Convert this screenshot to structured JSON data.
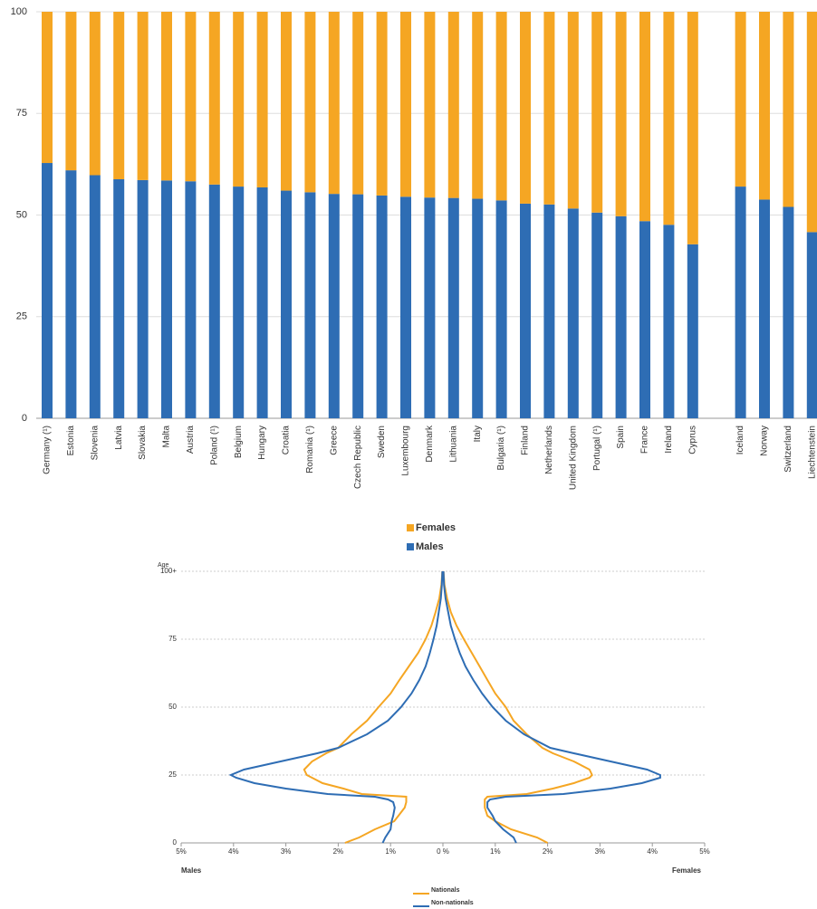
{
  "chart_data": [
    {
      "type": "bar",
      "stacked": true,
      "categories": [
        "Germany (¹)",
        "Estonia",
        "Slovenia",
        "Latvia",
        "Slovakia",
        "Malta",
        "Austria",
        "Poland (¹)",
        "Belgium",
        "Hungary",
        "Croatia",
        "Romania (¹)",
        "Greece",
        "Czech Republic",
        "Sweden",
        "Luxembourg",
        "Denmark",
        "Lithuania",
        "Italy",
        "Bulgaria (¹)",
        "Finland",
        "Netherlands",
        "United Kingdom",
        "Portugal (¹)",
        "Spain",
        "France",
        "Ireland",
        "Cyprus",
        null,
        "Iceland",
        "Norway",
        "Switzerland",
        "Liechtenstein"
      ],
      "series": [
        {
          "name": "Males",
          "color": "#2e6db4",
          "values": [
            62.8,
            61,
            59.8,
            58.8,
            58.6,
            58.5,
            58.3,
            57.5,
            57,
            56.8,
            56,
            55.6,
            55.2,
            55.1,
            54.8,
            54.5,
            54.3,
            54.2,
            54,
            53.6,
            52.8,
            52.6,
            51.6,
            50.6,
            49.7,
            48.5,
            47.6,
            42.8,
            null,
            57,
            53.8,
            52,
            45.8
          ]
        },
        {
          "name": "Females",
          "color": "#f5a623",
          "values": [
            37.2,
            39,
            40.2,
            41.2,
            41.4,
            41.5,
            41.7,
            42.5,
            43,
            43.2,
            44,
            44.4,
            44.8,
            44.9,
            45.2,
            45.5,
            45.7,
            45.8,
            46,
            46.4,
            47.2,
            47.4,
            48.4,
            49.4,
            50.3,
            51.5,
            52.4,
            57.2,
            null,
            43,
            46.2,
            48,
            54.2
          ]
        }
      ],
      "ylim": [
        0,
        100
      ],
      "yticks": [
        0,
        25,
        50,
        75,
        100
      ],
      "grid": true
    },
    {
      "type": "line",
      "y_label": "Age",
      "left_label": "Males",
      "right_label": "Females",
      "ages": [
        0,
        2,
        5,
        8,
        10,
        13,
        15,
        16,
        17,
        18,
        20,
        22,
        24,
        25,
        27,
        30,
        33,
        35,
        40,
        45,
        50,
        55,
        60,
        65,
        70,
        75,
        80,
        85,
        90,
        95,
        100
      ],
      "series": [
        {
          "name": "Nationals",
          "color": "#f5a623",
          "males": [
            -1.87,
            -1.6,
            -1.3,
            -0.93,
            -0.85,
            -0.73,
            -0.7,
            -0.7,
            -0.7,
            -1.55,
            -1.9,
            -2.3,
            -2.5,
            -2.6,
            -2.65,
            -2.5,
            -2.23,
            -2.0,
            -1.75,
            -1.45,
            -1.23,
            -1.0,
            -0.83,
            -0.65,
            -0.47,
            -0.33,
            -0.22,
            -0.14,
            -0.07,
            -0.03,
            -0.01
          ],
          "females": [
            2.0,
            1.8,
            1.3,
            1.0,
            0.85,
            0.8,
            0.8,
            0.8,
            0.85,
            1.6,
            2.1,
            2.5,
            2.8,
            2.85,
            2.8,
            2.5,
            2.1,
            1.9,
            1.6,
            1.35,
            1.2,
            1.0,
            0.85,
            0.7,
            0.55,
            0.4,
            0.26,
            0.15,
            0.08,
            0.03,
            0.01
          ]
        },
        {
          "name": "Non-nationals",
          "color": "#2e6db4",
          "males": [
            -1.15,
            -1.1,
            -1.0,
            -0.98,
            -0.95,
            -0.92,
            -0.95,
            -1.05,
            -1.3,
            -2.2,
            -3.0,
            -3.6,
            -3.95,
            -4.05,
            -3.8,
            -3.1,
            -2.4,
            -2.0,
            -1.45,
            -1.05,
            -0.8,
            -0.6,
            -0.45,
            -0.33,
            -0.25,
            -0.18,
            -0.12,
            -0.08,
            -0.04,
            -0.02,
            -0.01
          ],
          "females": [
            1.4,
            1.35,
            1.15,
            1.0,
            0.95,
            0.85,
            0.85,
            0.9,
            1.2,
            2.3,
            3.2,
            3.8,
            4.15,
            4.15,
            3.9,
            3.2,
            2.5,
            2.05,
            1.55,
            1.2,
            0.95,
            0.75,
            0.58,
            0.43,
            0.32,
            0.23,
            0.15,
            0.1,
            0.05,
            0.02,
            0.01
          ]
        }
      ],
      "xlim": [
        -5,
        5
      ],
      "xticks": [
        {
          "value": -5,
          "label": "5%"
        },
        {
          "value": -4,
          "label": "4%"
        },
        {
          "value": -3,
          "label": "3%"
        },
        {
          "value": -2,
          "label": "2%"
        },
        {
          "value": -1,
          "label": "1%"
        },
        {
          "value": 0,
          "label": "0 %"
        },
        {
          "value": 1,
          "label": "1%"
        },
        {
          "value": 2,
          "label": "2%"
        },
        {
          "value": 3,
          "label": "3%"
        },
        {
          "value": 4,
          "label": "4%"
        },
        {
          "value": 5,
          "label": "5%"
        }
      ],
      "ylim": [
        0,
        100
      ],
      "yticks": [
        0,
        25,
        50,
        75,
        {
          "value": 100,
          "label": "100+"
        }
      ],
      "grid": true
    }
  ]
}
